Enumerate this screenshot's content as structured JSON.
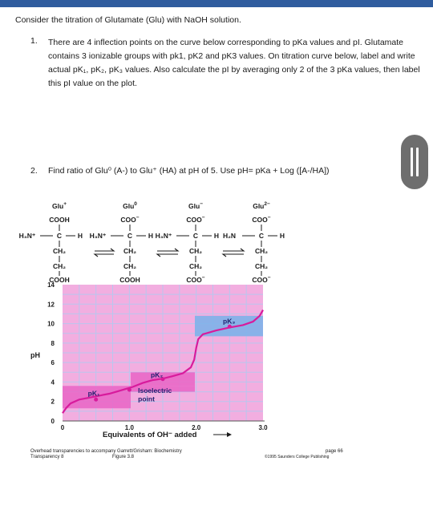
{
  "intro": "Consider the titration of Glutamate (Glu) with NaOH solution.",
  "question1": {
    "number": "1.",
    "text": "There are 4 inflection points on the curve below corresponding to pKa values and pI. Glutamate contains 3 ionizable groups with pk1, pK2 and pK3 values. On titration curve below, label and write actual pK₁, pK₂, pK₃ values. Also calculate the pI by averaging only 2 of the 3 pKa values, then label this pI value on the plot."
  },
  "question2": {
    "number": "2.",
    "text": "Find ratio of Glu⁰ (A-) to Glu⁺ (HA) at pH of 5. Use pH= pKa + Log ([A-/HA])"
  },
  "figure": {
    "species": [
      {
        "name": "Glu",
        "charge": "+",
        "top": "COOH",
        "alpha_n": "H₃N⁺",
        "chain1": "CH₂",
        "chain2": "CH₂",
        "side": "COOH"
      },
      {
        "name": "Glu",
        "charge": "0",
        "top": "COO",
        "alpha_n": "H₃N⁺",
        "chain1": "CH₂",
        "chain2": "CH₂",
        "side": "COOH"
      },
      {
        "name": "Glu",
        "charge": "−",
        "top": "COO",
        "alpha_n": "H₃N⁺",
        "chain1": "CH₂",
        "chain2": "CH₂",
        "side": "COO"
      },
      {
        "name": "Glu",
        "charge": "2−",
        "top": "COO",
        "alpha_n": "H₂N",
        "chain1": "CH₂",
        "chain2": "CH₂",
        "side": "COO"
      }
    ],
    "alpha_c": "C",
    "alpha_h": "H",
    "y_axis_label": "pH",
    "y_ticks": [
      "0",
      "2",
      "4",
      "6",
      "8",
      "10",
      "12",
      "14"
    ],
    "x_ticks": [
      "0",
      "1.0",
      "2.0",
      "3.0"
    ],
    "x_axis_label": "Equivalents of OH⁻ added",
    "labels": {
      "pk1": "pK₁",
      "pk2": "pK₂",
      "pk3": "pK₃",
      "isoelectric_1": "Isoelectric",
      "isoelectric_2": "point"
    },
    "colors": {
      "plot_bg": "#f2aee0",
      "grid": "#b9c6ee",
      "band_pink": "#e968c6",
      "band_blue": "#7eb1e9",
      "curve": "#d81b9c",
      "text": "#1f1f6e"
    },
    "curve_points": [
      [
        0,
        0.8
      ],
      [
        0.05,
        1.3
      ],
      [
        0.12,
        1.8
      ],
      [
        0.25,
        2.2
      ],
      [
        0.4,
        2.4
      ],
      [
        0.55,
        2.6
      ],
      [
        0.7,
        2.8
      ],
      [
        0.85,
        3.1
      ],
      [
        0.95,
        3.3
      ],
      [
        1.05,
        3.5
      ],
      [
        1.2,
        3.9
      ],
      [
        1.35,
        4.2
      ],
      [
        1.5,
        4.35
      ],
      [
        1.65,
        4.6
      ],
      [
        1.8,
        4.9
      ],
      [
        1.92,
        5.5
      ],
      [
        1.97,
        6.3
      ],
      [
        2.0,
        7.5
      ],
      [
        2.03,
        8.4
      ],
      [
        2.1,
        8.9
      ],
      [
        2.3,
        9.3
      ],
      [
        2.5,
        9.6
      ],
      [
        2.7,
        9.85
      ],
      [
        2.85,
        10.2
      ],
      [
        2.95,
        10.8
      ],
      [
        3.0,
        11.4
      ]
    ],
    "footer": {
      "line1": "Overhead transparencies to accompany Garrett/Grisham: Biochemistry",
      "line2_left": "Transparency 8",
      "line2_mid": "Figure  3.8",
      "page": "page 66",
      "copyright": "©1995 Saunders College Publishing"
    }
  }
}
